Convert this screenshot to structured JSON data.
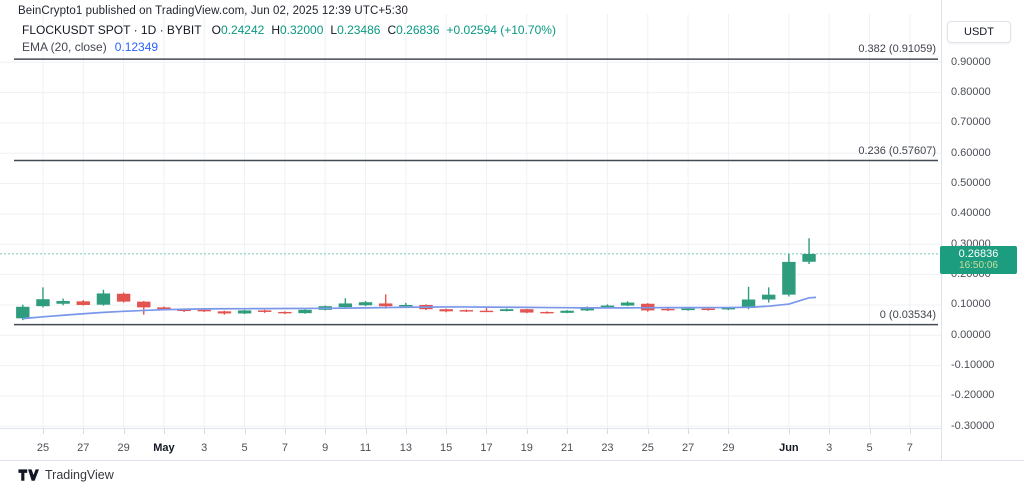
{
  "attribution": "BeinCrypto1 published on TradingView.com, Jun 02, 2025 12:39 UTC+5:30",
  "legend": {
    "symbol": "FLOCKUSDT SPOT · 1D · BYBIT",
    "ohlc": [
      {
        "label": "O",
        "value": "0.24242"
      },
      {
        "label": "H",
        "value": "0.32000"
      },
      {
        "label": "L",
        "value": "0.23486"
      },
      {
        "label": "C",
        "value": "0.26836"
      }
    ],
    "change": "+0.02594 (+10.70%)",
    "ema_label": "EMA (20, close)",
    "ema_value": "0.12349"
  },
  "colors": {
    "accent_up": "#089981",
    "ema_blue": "#2962ff"
  },
  "price_scale": {
    "currency": "USDT",
    "ticks": [
      {
        "label": "0.90000",
        "value": 0.9
      },
      {
        "label": "0.80000",
        "value": 0.8
      },
      {
        "label": "0.70000",
        "value": 0.7
      },
      {
        "label": "0.60000",
        "value": 0.6
      },
      {
        "label": "0.50000",
        "value": 0.5
      },
      {
        "label": "0.40000",
        "value": 0.4
      },
      {
        "label": "0.30000",
        "value": 0.3
      },
      {
        "label": "0.20000",
        "value": 0.2
      },
      {
        "label": "0.10000",
        "value": 0.1
      },
      {
        "label": "0.00000",
        "value": 0.0
      },
      {
        "label": "-0.10000",
        "value": -0.1
      },
      {
        "label": "-0.20000",
        "value": -0.2
      },
      {
        "label": "-0.30000",
        "value": -0.3
      }
    ],
    "price_badge": {
      "price": "0.26836",
      "countdown": "16:50:06"
    }
  },
  "time_scale": {
    "ticks": [
      {
        "label": "25",
        "day": 1,
        "em": false
      },
      {
        "label": "27",
        "day": 3,
        "em": false
      },
      {
        "label": "29",
        "day": 5,
        "em": false
      },
      {
        "label": "May",
        "day": 7,
        "em": true
      },
      {
        "label": "3",
        "day": 9,
        "em": false
      },
      {
        "label": "5",
        "day": 11,
        "em": false
      },
      {
        "label": "7",
        "day": 13,
        "em": false
      },
      {
        "label": "9",
        "day": 15,
        "em": false
      },
      {
        "label": "11",
        "day": 17,
        "em": false
      },
      {
        "label": "13",
        "day": 19,
        "em": false
      },
      {
        "label": "15",
        "day": 21,
        "em": false
      },
      {
        "label": "17",
        "day": 23,
        "em": false
      },
      {
        "label": "19",
        "day": 25,
        "em": false
      },
      {
        "label": "21",
        "day": 27,
        "em": false
      },
      {
        "label": "23",
        "day": 29,
        "em": false
      },
      {
        "label": "25",
        "day": 31,
        "em": false
      },
      {
        "label": "27",
        "day": 33,
        "em": false
      },
      {
        "label": "29",
        "day": 35,
        "em": false
      },
      {
        "label": "Jun",
        "day": 38,
        "em": true
      },
      {
        "label": "3",
        "day": 40,
        "em": false
      },
      {
        "label": "5",
        "day": 42,
        "em": false
      },
      {
        "label": "7",
        "day": 44,
        "em": false
      }
    ]
  },
  "fib_levels": [
    {
      "label": "0.382 (0.91059)",
      "value": 0.91059
    },
    {
      "label": "0.236 (0.57607)",
      "value": 0.57607
    },
    {
      "label": "0 (0.03534)",
      "value": 0.03534
    }
  ],
  "footer": {
    "brand": "TradingView"
  },
  "chart_data": {
    "type": "candlestick",
    "title": "FLOCKUSDT SPOT · 1D · BYBIT",
    "interval": "1D",
    "quote_currency": "USDT",
    "ylim": [
      -0.35,
      0.95
    ],
    "grid": true,
    "last_price": 0.26836,
    "colors": {
      "up": "#2f9d7d",
      "down": "#e25450",
      "ema": "#7a97ea",
      "badge": "#1d9d7f",
      "countdown_text": "#cbdd9d",
      "grid": "#eef1f5",
      "fib_line": "#444a55",
      "price_line": "#089981",
      "stub": "#d7dae0"
    },
    "candles": [
      {
        "date": "Apr 24",
        "o": 0.056,
        "h": 0.101,
        "l": 0.05,
        "c": 0.094
      },
      {
        "date": "Apr 25",
        "o": 0.096,
        "h": 0.158,
        "l": 0.092,
        "c": 0.119
      },
      {
        "date": "Apr 26",
        "o": 0.104,
        "h": 0.121,
        "l": 0.099,
        "c": 0.113
      },
      {
        "date": "Apr 27",
        "o": 0.112,
        "h": 0.116,
        "l": 0.098,
        "c": 0.1
      },
      {
        "date": "Apr 28",
        "o": 0.101,
        "h": 0.15,
        "l": 0.098,
        "c": 0.138
      },
      {
        "date": "Apr 29",
        "o": 0.137,
        "h": 0.141,
        "l": 0.108,
        "c": 0.111
      },
      {
        "date": "Apr 30",
        "o": 0.111,
        "h": 0.113,
        "l": 0.068,
        "c": 0.092
      },
      {
        "date": "May 1",
        "o": 0.092,
        "h": 0.095,
        "l": 0.082,
        "c": 0.085
      },
      {
        "date": "May 2",
        "o": 0.085,
        "h": 0.088,
        "l": 0.077,
        "c": 0.08
      },
      {
        "date": "May 3",
        "o": 0.084,
        "h": 0.087,
        "l": 0.077,
        "c": 0.079
      },
      {
        "date": "May 4",
        "o": 0.079,
        "h": 0.081,
        "l": 0.068,
        "c": 0.072
      },
      {
        "date": "May 5",
        "o": 0.072,
        "h": 0.084,
        "l": 0.07,
        "c": 0.082
      },
      {
        "date": "May 6",
        "o": 0.082,
        "h": 0.084,
        "l": 0.074,
        "c": 0.077
      },
      {
        "date": "May 7",
        "o": 0.077,
        "h": 0.079,
        "l": 0.07,
        "c": 0.073
      },
      {
        "date": "May 8",
        "o": 0.073,
        "h": 0.086,
        "l": 0.071,
        "c": 0.084
      },
      {
        "date": "May 9",
        "o": 0.084,
        "h": 0.098,
        "l": 0.082,
        "c": 0.096
      },
      {
        "date": "May 10",
        "o": 0.093,
        "h": 0.122,
        "l": 0.09,
        "c": 0.105
      },
      {
        "date": "May 11",
        "o": 0.099,
        "h": 0.113,
        "l": 0.096,
        "c": 0.109
      },
      {
        "date": "May 12",
        "o": 0.105,
        "h": 0.135,
        "l": 0.088,
        "c": 0.096
      },
      {
        "date": "May 13",
        "o": 0.098,
        "h": 0.107,
        "l": 0.094,
        "c": 0.1
      },
      {
        "date": "May 14",
        "o": 0.1,
        "h": 0.102,
        "l": 0.083,
        "c": 0.086
      },
      {
        "date": "May 15",
        "o": 0.086,
        "h": 0.088,
        "l": 0.076,
        "c": 0.079
      },
      {
        "date": "May 16",
        "o": 0.083,
        "h": 0.085,
        "l": 0.077,
        "c": 0.08
      },
      {
        "date": "May 17",
        "o": 0.081,
        "h": 0.09,
        "l": 0.077,
        "c": 0.08
      },
      {
        "date": "May 18",
        "o": 0.08,
        "h": 0.088,
        "l": 0.079,
        "c": 0.086
      },
      {
        "date": "May 19",
        "o": 0.086,
        "h": 0.087,
        "l": 0.073,
        "c": 0.075
      },
      {
        "date": "May 20",
        "o": 0.077,
        "h": 0.079,
        "l": 0.071,
        "c": 0.073
      },
      {
        "date": "May 21",
        "o": 0.074,
        "h": 0.083,
        "l": 0.073,
        "c": 0.081
      },
      {
        "date": "May 22",
        "o": 0.082,
        "h": 0.095,
        "l": 0.08,
        "c": 0.092
      },
      {
        "date": "May 23",
        "o": 0.092,
        "h": 0.102,
        "l": 0.09,
        "c": 0.098
      },
      {
        "date": "May 24",
        "o": 0.098,
        "h": 0.112,
        "l": 0.096,
        "c": 0.108
      },
      {
        "date": "May 25",
        "o": 0.104,
        "h": 0.106,
        "l": 0.078,
        "c": 0.082
      },
      {
        "date": "May 26",
        "o": 0.087,
        "h": 0.089,
        "l": 0.08,
        "c": 0.083
      },
      {
        "date": "May 27",
        "o": 0.083,
        "h": 0.09,
        "l": 0.081,
        "c": 0.088
      },
      {
        "date": "May 28",
        "o": 0.088,
        "h": 0.089,
        "l": 0.081,
        "c": 0.084
      },
      {
        "date": "May 29",
        "o": 0.086,
        "h": 0.092,
        "l": 0.083,
        "c": 0.09
      },
      {
        "date": "May 30",
        "o": 0.09,
        "h": 0.16,
        "l": 0.086,
        "c": 0.118
      },
      {
        "date": "May 31",
        "o": 0.118,
        "h": 0.158,
        "l": 0.108,
        "c": 0.134
      },
      {
        "date": "Jun 1",
        "o": 0.134,
        "h": 0.268,
        "l": 0.128,
        "c": 0.242
      },
      {
        "date": "Jun 2",
        "o": 0.24242,
        "h": 0.32,
        "l": 0.23486,
        "c": 0.26836
      }
    ],
    "ema20": [
      0.055,
      0.061,
      0.066,
      0.071,
      0.0755,
      0.079,
      0.082,
      0.0845,
      0.086,
      0.087,
      0.0875,
      0.0878,
      0.088,
      0.0883,
      0.0886,
      0.089,
      0.0895,
      0.0905,
      0.0915,
      0.0925,
      0.093,
      0.0935,
      0.0935,
      0.093,
      0.0925,
      0.092,
      0.0915,
      0.091,
      0.0905,
      0.0903,
      0.0905,
      0.091,
      0.0912,
      0.0913,
      0.0914,
      0.0915,
      0.0925,
      0.096,
      0.103,
      0.1235
    ]
  }
}
